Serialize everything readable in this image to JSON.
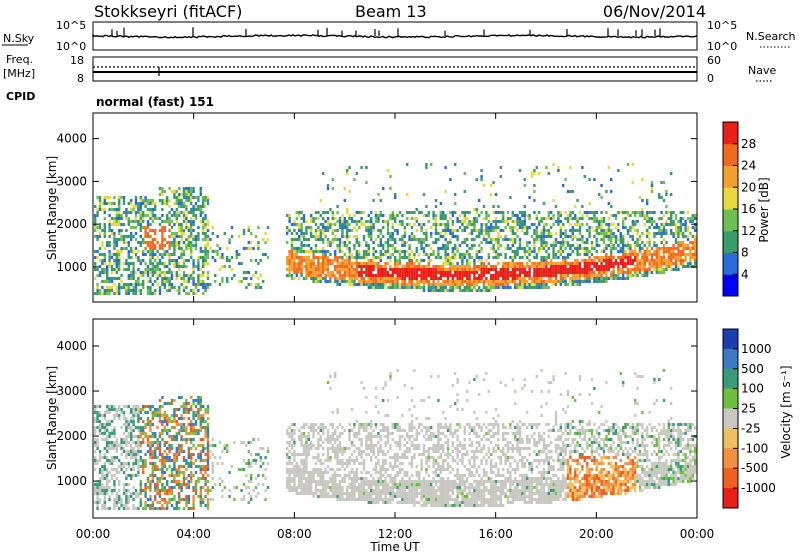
{
  "header": {
    "title": "Stokkseyri (fitACF)",
    "beam": "Beam 13",
    "date": "06/Nov/2014"
  },
  "noise_panel": {
    "left_label": "N.Sky",
    "right_label": "N.Search",
    "left_top_tick": "10^5",
    "left_bottom_tick": "10^0",
    "right_top_tick": "10^5",
    "right_bottom_tick": "10^0"
  },
  "freq_panel": {
    "left_label_1": "Freq.",
    "left_label_2": "[MHz]",
    "left_top_tick": "18",
    "left_bottom_tick": "8",
    "right_top_tick": "60",
    "right_bottom_tick": "0",
    "right_label": "Nave"
  },
  "cpid": {
    "label": "CPID",
    "value": "normal (fast) 151"
  },
  "colors": {
    "axis": "#000000",
    "background": "#ffffff"
  },
  "chart_data": [
    {
      "type": "heatmap",
      "name": "power",
      "ylabel": "Slant Range [km]",
      "ylim": [
        180,
        4600
      ],
      "xlim": [
        0,
        24
      ],
      "yticks": [
        1000,
        2000,
        3000,
        4000
      ],
      "colorbar": {
        "label": "Power [dB]",
        "ticks": [
          "4",
          "8",
          "12",
          "16",
          "20",
          "24",
          "28"
        ],
        "colors": [
          "#0000ff",
          "#2a6bd9",
          "#3a9a6a",
          "#6cbf50",
          "#e8d840",
          "#f2a030",
          "#f06a20",
          "#e82018"
        ],
        "range": [
          0,
          32
        ]
      }
    },
    {
      "type": "heatmap",
      "name": "velocity",
      "ylabel": "Slant Range [km]",
      "xlabel": "Time UT",
      "ylim": [
        180,
        4600
      ],
      "xlim": [
        0,
        24
      ],
      "yticks": [
        1000,
        2000,
        3000,
        4000
      ],
      "xticks": [
        "00:00",
        "04:00",
        "08:00",
        "12:00",
        "16:00",
        "20:00",
        "00:00"
      ],
      "colorbar": {
        "label": "Velocity [m s⁻¹]",
        "ticks": [
          "1000",
          "500",
          "100",
          "25",
          "-25",
          "-100",
          "-500",
          "-1000"
        ],
        "colors": [
          "#1a3fb0",
          "#3a7ac0",
          "#3a9a7a",
          "#70c040",
          "#c8c8c0",
          "#f0c060",
          "#f09040",
          "#f06020",
          "#e82018"
        ]
      }
    }
  ]
}
